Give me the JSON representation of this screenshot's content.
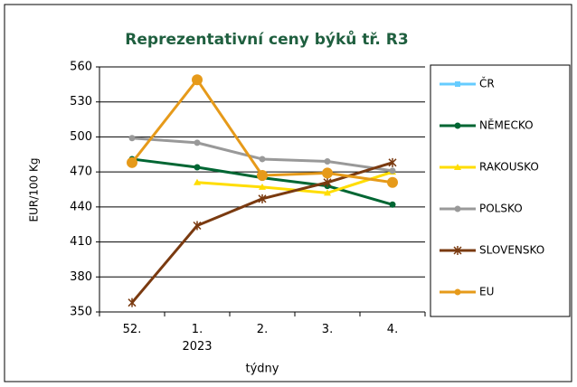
{
  "chart_data": {
    "type": "line",
    "title": "Reprezentativní ceny býků tř. R3",
    "x_label": "týdny",
    "y_label": "EUR/100 Kg",
    "categories": [
      "52.",
      "1.\n2023",
      "2.",
      "3.",
      "4."
    ],
    "ylim": [
      350,
      560
    ],
    "yticks": [
      350,
      380,
      410,
      440,
      470,
      500,
      530,
      560
    ],
    "grid": true,
    "legend": "right",
    "series": [
      {
        "name": "ČR",
        "color": "#66ccff",
        "marker": "square",
        "values": [
          null,
          null,
          null,
          null,
          null
        ]
      },
      {
        "name": "NĚMECKO",
        "color": "#006633",
        "marker": "circle",
        "values": [
          481,
          474,
          465,
          458,
          442
        ]
      },
      {
        "name": "RAKOUSKO",
        "color": "#ffdd00",
        "marker": "triangle",
        "values": [
          null,
          461,
          457,
          452,
          470
        ]
      },
      {
        "name": "POLSKO",
        "color": "#999999",
        "marker": "circle",
        "values": [
          499,
          495,
          481,
          479,
          471
        ]
      },
      {
        "name": "SLOVENSKO",
        "color": "#7a3a10",
        "marker": "star",
        "values": [
          358,
          424,
          447,
          461,
          478
        ]
      },
      {
        "name": "EU",
        "color": "#e69a1a",
        "marker": "bigcircle",
        "values": [
          478,
          549,
          467,
          469,
          461
        ]
      }
    ]
  }
}
